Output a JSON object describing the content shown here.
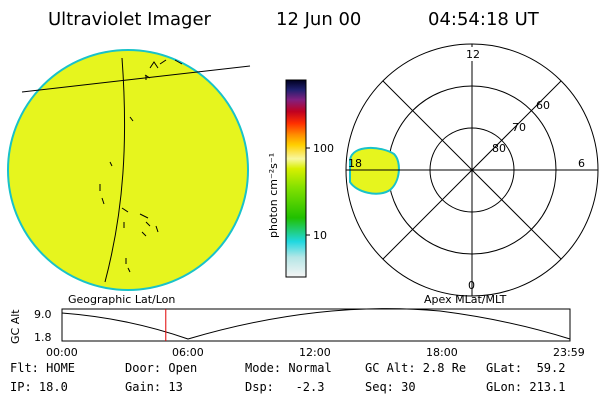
{
  "header": {
    "title": "Ultraviolet Imager",
    "date": "12 Jun 00",
    "time": "04:54:18 UT"
  },
  "colorbar": {
    "unit_label": "photon cm⁻²s⁻¹",
    "tick_100": "100",
    "tick_10": "10"
  },
  "polar": {
    "mlt_labels": {
      "top": "12",
      "right": "6",
      "bottom": "0",
      "left": "18"
    },
    "lat_labels": [
      "60",
      "70",
      "80"
    ]
  },
  "panel_labels": {
    "left": "Geographic Lat/Lon",
    "right": "Apex MLat/MLT"
  },
  "timeline": {
    "ylabel": "GC Alt",
    "ytick_top": "9.0",
    "ytick_bottom": "1.8",
    "xticks": [
      "00:00",
      "06:00",
      "12:00",
      "18:00",
      "23:59"
    ],
    "marker_color": "#e00000",
    "marker_time": "04:54"
  },
  "status": {
    "flt": "Flt: HOME",
    "ip": "IP: 18.0",
    "door": "Door: Open",
    "gain": "Gain: 13",
    "mode": "Mode: Normal",
    "dsp": "Dsp:   -2.3",
    "gcalt": "GC Alt: 2.8 Re",
    "seq": "Seq: 30",
    "glat": "GLat:  59.2",
    "glon": "GLon: 213.1"
  },
  "colors": {
    "image_fill": "#e6f51e",
    "image_edge": "#19c2c9"
  }
}
